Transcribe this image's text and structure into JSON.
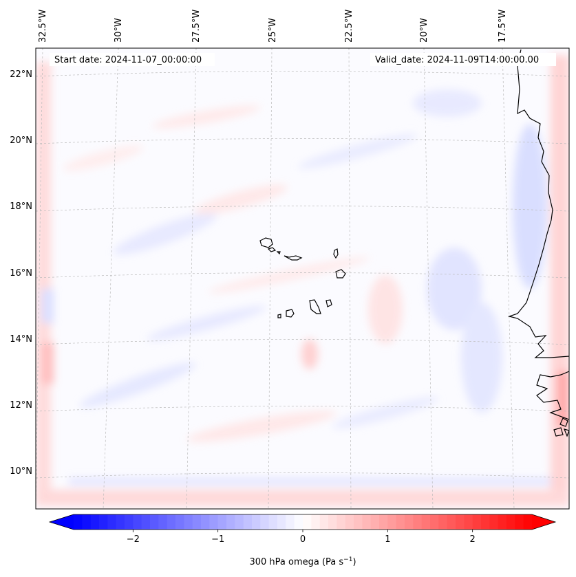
{
  "map": {
    "start_date_text": "Start date: 2024-11-07_00:00:00",
    "valid_date_text": "Valid_date: 2024-11-09T14:00:00.00",
    "longitude_labels": [
      "32.5°W",
      "30°W",
      "27.5°W",
      "25°W",
      "22.5°W",
      "20°W",
      "17.5°W"
    ],
    "latitude_labels": [
      "22°N",
      "20°N",
      "18°N",
      "16°N",
      "14°N",
      "12°N",
      "10°N"
    ],
    "coastline_color": "#000000",
    "gridline_color": "#bbbbbb"
  },
  "colorbar": {
    "label_main": "300 hPa omega (Pa s",
    "label_exp": "−1",
    "label_end": ")",
    "tick_labels": [
      "−2",
      "−1",
      "0",
      "1",
      "2"
    ],
    "range": [
      -2.7,
      2.7
    ],
    "extend": "both",
    "colormap": "bwr",
    "color_min": "#0000ff",
    "color_mid": "#ffffff",
    "color_max": "#ff0000"
  }
}
